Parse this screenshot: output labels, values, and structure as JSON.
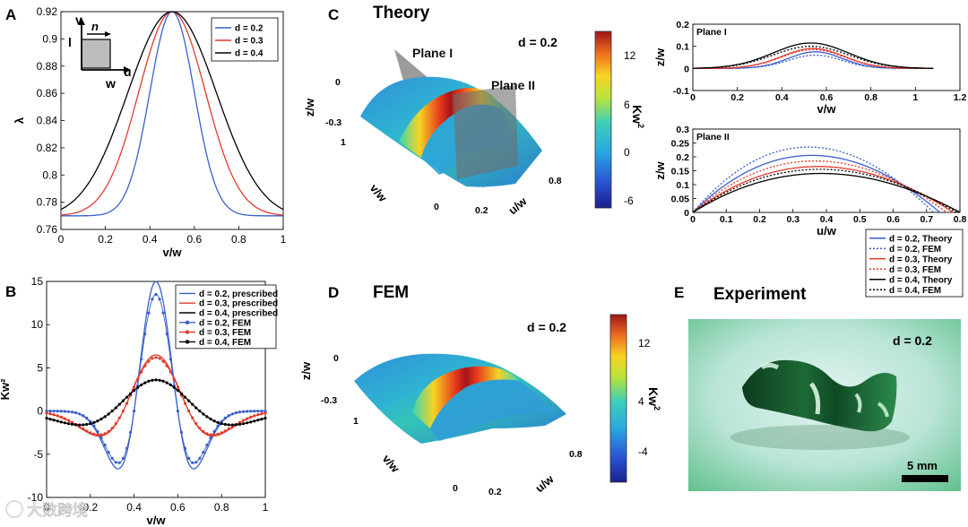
{
  "panels": {
    "A": {
      "letter": "A"
    },
    "B": {
      "letter": "B"
    },
    "C": {
      "letter": "C",
      "title": "Theory",
      "d_label": "d = 0.2",
      "plane1": "Plane I",
      "plane2": "Plane II",
      "zlab": "z/w",
      "vlab": "v/w",
      "ulab": "u/w",
      "z_ticks": [
        "0",
        "-0.3"
      ],
      "v_ticks": [
        "1",
        "0"
      ],
      "u_ticks": [
        "0.2",
        "0.8"
      ],
      "cbar": {
        "label": "Kw",
        "label_sup": "2",
        "ticks": [
          "12",
          "6",
          "0",
          "-6"
        ]
      }
    },
    "D": {
      "letter": "D",
      "title": "FEM",
      "d_label": "d = 0.2",
      "zlab": "z/w",
      "vlab": "v/w",
      "ulab": "u/w",
      "z_ticks": [
        "0",
        "-0.3"
      ],
      "v_ticks": [
        "1",
        "0"
      ],
      "u_ticks": [
        "0.2",
        "0.8"
      ],
      "cbar": {
        "label": "Kw",
        "label_sup": "2",
        "ticks": [
          "12",
          "4",
          "-4"
        ]
      }
    },
    "E": {
      "letter": "E",
      "title": "Experiment",
      "d_label": "d = 0.2",
      "scale_bar": "5 mm"
    }
  },
  "inset": {
    "v": "v",
    "n": "n",
    "l": "l",
    "u": "u",
    "w": "w"
  },
  "watermark": "大数跨境",
  "colors": {
    "blue": "#3a5fcd",
    "red": "#e23a2a",
    "black": "#000000"
  },
  "chart_data": [
    {
      "id": "A",
      "type": "line",
      "xlabel": "v/w",
      "ylabel": "λ",
      "xlim": [
        0,
        1
      ],
      "ylim": [
        0.76,
        0.92
      ],
      "xticks": [
        0,
        0.2,
        0.4,
        0.6,
        0.8,
        1
      ],
      "xtick_labels": [
        "0",
        "0.2",
        "0.4",
        "0.6",
        "0.8",
        "1"
      ],
      "yticks": [
        0.76,
        0.78,
        0.8,
        0.82,
        0.84,
        0.86,
        0.88,
        0.9,
        0.92
      ],
      "ytick_labels": [
        "0.76",
        "0.78",
        "0.8",
        "0.82",
        "0.84",
        "0.86",
        "0.88",
        "0.9",
        "0.92"
      ],
      "legend": "top-right",
      "series": [
        {
          "name": "d = 0.2",
          "color": "blue",
          "style": "solid",
          "shape": "gauss",
          "peak": 0.92,
          "base": 0.77,
          "center": 0.5,
          "width": 0.1
        },
        {
          "name": "d = 0.3",
          "color": "red",
          "style": "solid",
          "shape": "gauss",
          "peak": 0.92,
          "base": 0.77,
          "center": 0.5,
          "width": 0.15
        },
        {
          "name": "d = 0.4",
          "color": "black",
          "style": "solid",
          "shape": "gauss",
          "peak": 0.92,
          "base": 0.768,
          "center": 0.5,
          "width": 0.2
        }
      ]
    },
    {
      "id": "B",
      "type": "line",
      "xlabel": "v/w",
      "ylabel": "Kw²",
      "xlim": [
        0,
        1
      ],
      "ylim": [
        -10,
        15
      ],
      "xticks": [
        0,
        0.2,
        0.4,
        0.6,
        0.8,
        1
      ],
      "xtick_labels": [
        "0",
        "0.2",
        "0.4",
        "0.6",
        "0.8",
        "1"
      ],
      "yticks": [
        -10,
        -5,
        0,
        5,
        10,
        15
      ],
      "ytick_labels": [
        "-10",
        "-5",
        "0",
        "5",
        "10",
        "15"
      ],
      "legend": "top-right",
      "series": [
        {
          "name": "d = 0.2, prescribed",
          "color": "blue",
          "style": "solid",
          "shape": "mexhat",
          "amp": 15,
          "width": 0.1
        },
        {
          "name": "d = 0.3, prescribed",
          "color": "red",
          "style": "solid",
          "shape": "mexhat",
          "amp": 6.5,
          "width": 0.15
        },
        {
          "name": "d = 0.4, prescribed",
          "color": "black",
          "style": "solid",
          "shape": "mexhat",
          "amp": 3.6,
          "width": 0.2
        },
        {
          "name": "d = 0.2, FEM",
          "color": "blue",
          "style": "markers",
          "shape": "mexhat",
          "amp": 13.5,
          "width": 0.1
        },
        {
          "name": "d = 0.3, FEM",
          "color": "red",
          "style": "markers",
          "shape": "mexhat",
          "amp": 6.2,
          "width": 0.15
        },
        {
          "name": "d = 0.4, FEM",
          "color": "black",
          "style": "markers",
          "shape": "mexhat",
          "amp": 3.6,
          "width": 0.2
        }
      ]
    },
    {
      "id": "C1",
      "type": "line",
      "title": "Plane I",
      "xlabel": "v/w",
      "ylabel": "z/w",
      "xlim": [
        0,
        1.2
      ],
      "ylim": [
        -0.1,
        0.2
      ],
      "xticks": [
        0,
        0.2,
        0.4,
        0.6,
        0.8,
        1,
        1.2
      ],
      "xtick_labels": [
        "0",
        "0.2",
        "0.4",
        "0.6",
        "0.8",
        "1",
        "1.2"
      ],
      "yticks": [
        -0.1,
        0,
        0.1,
        0.2
      ],
      "ytick_labels": [
        "-0.1",
        "0",
        "0.1",
        "0.2"
      ],
      "series": [
        {
          "name": "d = 0.2, Theory",
          "color": "blue",
          "style": "solid",
          "shape": "gauss0",
          "amp": 0.075,
          "center": 0.55,
          "width": 0.12,
          "xmax": 1.08
        },
        {
          "name": "d = 0.2, FEM",
          "color": "blue",
          "style": "dotted",
          "shape": "gauss0",
          "amp": 0.06,
          "center": 0.55,
          "width": 0.12,
          "xmax": 1.08
        },
        {
          "name": "d = 0.3, Theory",
          "color": "red",
          "style": "solid",
          "shape": "gauss0",
          "amp": 0.09,
          "center": 0.54,
          "width": 0.14,
          "xmax": 1.08
        },
        {
          "name": "d = 0.3, FEM",
          "color": "red",
          "style": "dotted",
          "shape": "gauss0",
          "amp": 0.085,
          "center": 0.54,
          "width": 0.14,
          "xmax": 1.08
        },
        {
          "name": "d = 0.4, Theory",
          "color": "black",
          "style": "solid",
          "shape": "gauss0",
          "amp": 0.115,
          "center": 0.53,
          "width": 0.17,
          "xmax": 1.08
        },
        {
          "name": "d = 0.4, FEM",
          "color": "black",
          "style": "dotted",
          "shape": "gauss0",
          "amp": 0.1,
          "center": 0.53,
          "width": 0.17,
          "xmax": 1.08
        }
      ]
    },
    {
      "id": "C2",
      "type": "line",
      "title": "Plane II",
      "xlabel": "u/w",
      "ylabel": "z/w",
      "xlim": [
        0,
        0.8
      ],
      "ylim": [
        0,
        0.3
      ],
      "xticks": [
        0,
        0.1,
        0.2,
        0.3,
        0.4,
        0.5,
        0.6,
        0.7,
        0.8
      ],
      "xtick_labels": [
        "0",
        "0.1",
        "0.2",
        "0.3",
        "0.4",
        "0.5",
        "0.6",
        "0.7",
        "0.8"
      ],
      "yticks": [
        0,
        0.05,
        0.1,
        0.15,
        0.2,
        0.25,
        0.3
      ],
      "ytick_labels": [
        "0",
        "0.05",
        "0.1",
        "0.15",
        "0.2",
        "0.25",
        "0.3"
      ],
      "legend": "bottom-right-outside",
      "series": [
        {
          "name": "d = 0.2, Theory",
          "color": "blue",
          "style": "solid",
          "shape": "arch",
          "amp": 0.205,
          "xmax": 0.74
        },
        {
          "name": "d = 0.2, FEM",
          "color": "blue",
          "style": "dotted",
          "shape": "arch",
          "amp": 0.235,
          "xmax": 0.72
        },
        {
          "name": "d = 0.3, Theory",
          "color": "red",
          "style": "solid",
          "shape": "arch",
          "amp": 0.165,
          "xmax": 0.78
        },
        {
          "name": "d = 0.3, FEM",
          "color": "red",
          "style": "dotted",
          "shape": "arch",
          "amp": 0.185,
          "xmax": 0.76
        },
        {
          "name": "d = 0.4, Theory",
          "color": "black",
          "style": "solid",
          "shape": "arch",
          "amp": 0.14,
          "xmax": 0.8
        },
        {
          "name": "d = 0.4, FEM",
          "color": "black",
          "style": "dotted",
          "shape": "arch",
          "amp": 0.155,
          "xmax": 0.79
        }
      ]
    }
  ]
}
